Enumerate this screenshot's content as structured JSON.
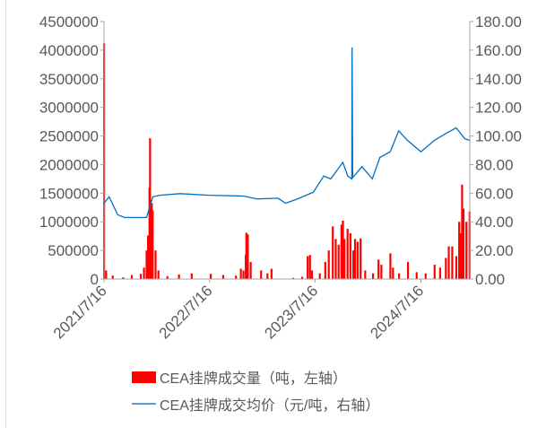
{
  "chart_data": {
    "type": "bar+line",
    "x_axis": {
      "type": "date",
      "range": [
        "2021-07-16",
        "2025-01-01"
      ],
      "tick_labels": [
        "2021/7/16",
        "2022/7/16",
        "2023/7/16",
        "2024/7/16"
      ],
      "tick_dates": [
        "2021-07-16",
        "2022-07-16",
        "2023-07-16",
        "2024-07-16"
      ]
    },
    "y_left": {
      "range": [
        0,
        4500000
      ],
      "tick_labels": [
        "0",
        "500000",
        "1000000",
        "1500000",
        "2000000",
        "2500000",
        "3000000",
        "3500000",
        "4000000",
        "4500000"
      ]
    },
    "y_right": {
      "range": [
        0,
        180
      ],
      "tick_labels": [
        "0.00",
        "20.00",
        "40.00",
        "60.00",
        "80.00",
        "100.00",
        "120.00",
        "140.00",
        "160.00",
        "180.00"
      ]
    },
    "grid": false,
    "legend_placement": "bottom",
    "series": [
      {
        "name": "CEA挂牌成交量（吨，左轴）",
        "type": "bar",
        "axis": "left",
        "color": "#ff0000",
        "points": [
          [
            "2021-07-16",
            4120000
          ],
          [
            "2021-07-23",
            150000
          ],
          [
            "2021-08-15",
            60000
          ],
          [
            "2021-09-20",
            30000
          ],
          [
            "2021-10-20",
            70000
          ],
          [
            "2021-11-20",
            90000
          ],
          [
            "2021-12-01",
            200000
          ],
          [
            "2021-12-10",
            500000
          ],
          [
            "2021-12-15",
            760000
          ],
          [
            "2021-12-20",
            1600000
          ],
          [
            "2021-12-22",
            2460000
          ],
          [
            "2021-12-24",
            1000000
          ],
          [
            "2021-12-28",
            1330000
          ],
          [
            "2021-12-31",
            1200000
          ],
          [
            "2022-01-10",
            500000
          ],
          [
            "2022-01-20",
            150000
          ],
          [
            "2022-02-20",
            50000
          ],
          [
            "2022-04-01",
            80000
          ],
          [
            "2022-05-15",
            100000
          ],
          [
            "2022-07-20",
            90000
          ],
          [
            "2022-09-01",
            70000
          ],
          [
            "2022-10-15",
            60000
          ],
          [
            "2022-11-01",
            180000
          ],
          [
            "2022-11-10",
            150000
          ],
          [
            "2022-11-18",
            420000
          ],
          [
            "2022-11-20",
            810000
          ],
          [
            "2022-11-25",
            780000
          ],
          [
            "2022-12-05",
            300000
          ],
          [
            "2023-01-10",
            150000
          ],
          [
            "2023-02-01",
            100000
          ],
          [
            "2023-02-15",
            180000
          ],
          [
            "2023-05-01",
            20000
          ],
          [
            "2023-06-01",
            40000
          ],
          [
            "2023-06-20",
            400000
          ],
          [
            "2023-06-28",
            420000
          ],
          [
            "2023-07-05",
            150000
          ],
          [
            "2023-08-01",
            100000
          ],
          [
            "2023-08-20",
            300000
          ],
          [
            "2023-09-01",
            500000
          ],
          [
            "2023-09-15",
            920000
          ],
          [
            "2023-09-25",
            700000
          ],
          [
            "2023-10-05",
            600000
          ],
          [
            "2023-10-15",
            950000
          ],
          [
            "2023-10-20",
            1020000
          ],
          [
            "2023-10-25",
            700000
          ],
          [
            "2023-11-05",
            880000
          ],
          [
            "2023-11-15",
            800000
          ],
          [
            "2023-11-25",
            500000
          ],
          [
            "2023-12-01",
            700000
          ],
          [
            "2023-12-10",
            650000
          ],
          [
            "2023-12-20",
            710000
          ],
          [
            "2024-01-05",
            150000
          ],
          [
            "2024-02-01",
            100000
          ],
          [
            "2024-02-20",
            340000
          ],
          [
            "2024-03-01",
            250000
          ],
          [
            "2024-04-01",
            450000
          ],
          [
            "2024-04-10",
            200000
          ],
          [
            "2024-05-01",
            100000
          ],
          [
            "2024-06-01",
            300000
          ],
          [
            "2024-07-01",
            120000
          ],
          [
            "2024-08-01",
            100000
          ],
          [
            "2024-09-01",
            250000
          ],
          [
            "2024-09-20",
            200000
          ],
          [
            "2024-10-10",
            370000
          ],
          [
            "2024-10-20",
            570000
          ],
          [
            "2024-11-01",
            570000
          ],
          [
            "2024-11-15",
            400000
          ],
          [
            "2024-11-25",
            1000000
          ],
          [
            "2024-12-01",
            800000
          ],
          [
            "2024-12-05",
            1650000
          ],
          [
            "2024-12-10",
            1230000
          ],
          [
            "2024-12-20",
            1000000
          ],
          [
            "2024-12-31",
            1180000
          ]
        ]
      },
      {
        "name": "CEA挂牌成交均价（元/吨，右轴）",
        "type": "line",
        "axis": "right",
        "color": "#0070c0",
        "points": [
          [
            "2021-07-16",
            53
          ],
          [
            "2021-08-03",
            57.5
          ],
          [
            "2021-09-01",
            45
          ],
          [
            "2021-09-25",
            43
          ],
          [
            "2021-12-10",
            43
          ],
          [
            "2022-01-01",
            57.5
          ],
          [
            "2022-01-25",
            58.6
          ],
          [
            "2022-04-05",
            59.7
          ],
          [
            "2022-07-16",
            58.6
          ],
          [
            "2022-11-10",
            58
          ],
          [
            "2022-12-28",
            56
          ],
          [
            "2023-03-10",
            56.5
          ],
          [
            "2023-04-05",
            53
          ],
          [
            "2023-05-10",
            55.5
          ],
          [
            "2023-07-10",
            60.7
          ],
          [
            "2023-08-15",
            72
          ],
          [
            "2023-09-08",
            70
          ],
          [
            "2023-10-20",
            81.6
          ],
          [
            "2023-11-06",
            72
          ],
          [
            "2023-11-20",
            70
          ],
          [
            "2023-11-21",
            162
          ],
          [
            "2023-11-23",
            71
          ],
          [
            "2023-12-25",
            78.5
          ],
          [
            "2024-01-30",
            70
          ],
          [
            "2024-02-25",
            85
          ],
          [
            "2024-04-01",
            89
          ],
          [
            "2024-04-30",
            103.6
          ],
          [
            "2024-05-30",
            97
          ],
          [
            "2024-07-16",
            89
          ],
          [
            "2024-09-01",
            97
          ],
          [
            "2024-10-08",
            101.5
          ],
          [
            "2024-11-15",
            105.7
          ],
          [
            "2024-12-15",
            98
          ],
          [
            "2024-12-31",
            97
          ]
        ]
      }
    ]
  }
}
